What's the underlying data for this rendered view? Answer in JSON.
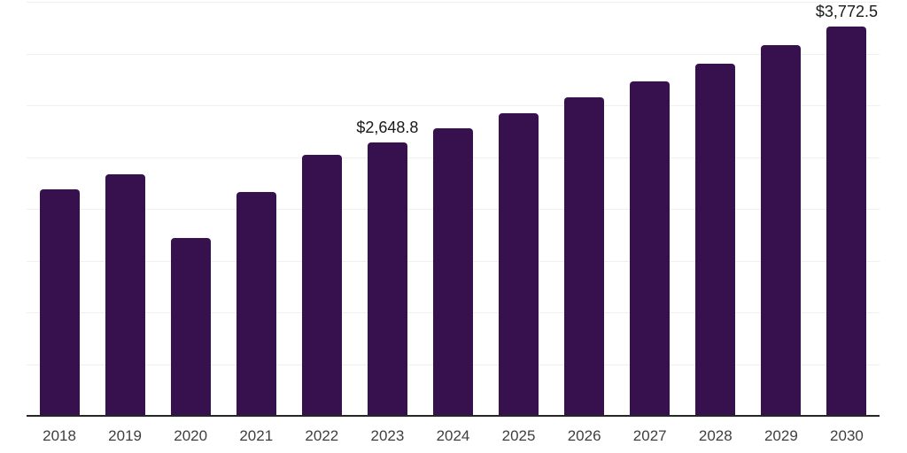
{
  "chart_data": {
    "type": "bar",
    "title": "",
    "xlabel": "",
    "ylabel": "",
    "categories": [
      "2018",
      "2019",
      "2020",
      "2021",
      "2022",
      "2023",
      "2024",
      "2025",
      "2026",
      "2027",
      "2028",
      "2029",
      "2030"
    ],
    "values": [
      2195,
      2340,
      1730,
      2175,
      2530,
      2648.8,
      2786,
      2930,
      3082,
      3242,
      3410,
      3587,
      3772.5
    ],
    "point_labels": [
      "",
      "",
      "",
      "",
      "",
      "$2,648.8",
      "",
      "",
      "",
      "",
      "",
      "",
      "$3,772.5"
    ],
    "ylim": [
      0,
      4000
    ],
    "gridline_step": 500,
    "grid": "horizontal",
    "legend_position": "none",
    "colors": {
      "bar": "#36114D",
      "axis_line": "#262626",
      "gridline": "#efefef",
      "tick_label": "#3f3f3f",
      "data_label": "#1a1a1a",
      "background": "#ffffff"
    }
  }
}
